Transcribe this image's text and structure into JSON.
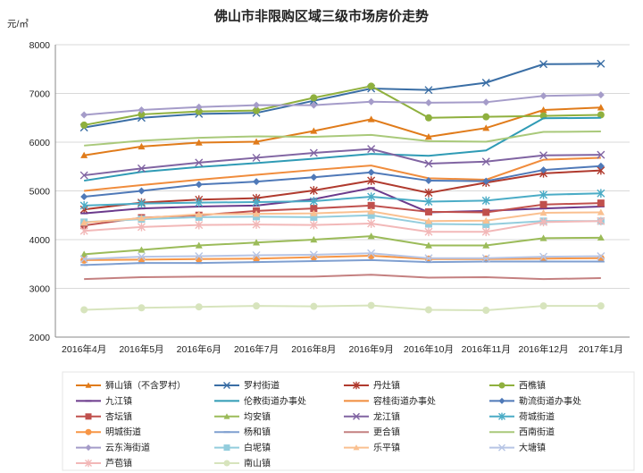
{
  "chart_data": {
    "type": "line",
    "title": "佛山市非限购区域三级市场房价走势",
    "ylabel": "元/㎡",
    "xlabel": "",
    "ylim": [
      2000,
      8000
    ],
    "yticks": [
      "2000",
      "3000",
      "4000",
      "5000",
      "6000",
      "7000",
      "8000"
    ],
    "categories": [
      "2016年4月",
      "2016年5月",
      "2016年6月",
      "2016年7月",
      "2016年8月",
      "2016年9月",
      "2016年10月",
      "2016年11月",
      "2016年12月",
      "2017年1月"
    ],
    "grid": "horizontal",
    "legend_position": "bottom",
    "series": [
      {
        "name": "狮山镇（不含罗村）",
        "color": "#e07b1a",
        "marker": "triangle",
        "values": [
          5730,
          5910,
          5990,
          6010,
          6230,
          6470,
          6110,
          6290,
          6660,
          6710
        ]
      },
      {
        "name": "罗村街道",
        "color": "#3a6ea5",
        "marker": "x",
        "values": [
          6300,
          6500,
          6580,
          6600,
          6850,
          7100,
          7070,
          7220,
          7600,
          7610
        ]
      },
      {
        "name": "丹灶镇",
        "color": "#b03a2e",
        "marker": "star",
        "values": [
          4620,
          4760,
          4820,
          4850,
          5010,
          5210,
          4960,
          5170,
          5360,
          5420
        ]
      },
      {
        "name": "西樵镇",
        "color": "#8fb03e",
        "marker": "circle",
        "values": [
          6350,
          6570,
          6630,
          6650,
          6910,
          7150,
          6500,
          6520,
          6540,
          6560
        ]
      },
      {
        "name": "九江镇",
        "color": "#6b3a8c",
        "marker": "dash",
        "values": [
          4540,
          4640,
          4680,
          4700,
          4830,
          5060,
          4560,
          4590,
          4640,
          4680
        ]
      },
      {
        "name": "伦教街道办事处",
        "color": "#2f9bb5",
        "marker": "none",
        "values": [
          5210,
          5390,
          5490,
          5570,
          5660,
          5760,
          5720,
          5830,
          6490,
          6500
        ]
      },
      {
        "name": "容桂街道办事处",
        "color": "#f08c3c",
        "marker": "none",
        "values": [
          5000,
          5120,
          5230,
          5330,
          5430,
          5520,
          5260,
          5230,
          5640,
          5680
        ]
      },
      {
        "name": "勒流街道办事处",
        "color": "#4f79b8",
        "marker": "diamond",
        "values": [
          4880,
          5000,
          5130,
          5190,
          5280,
          5380,
          5210,
          5200,
          5430,
          5510
        ]
      },
      {
        "name": "杏坛镇",
        "color": "#c0504d",
        "marker": "square",
        "values": [
          4290,
          4450,
          4500,
          4590,
          4640,
          4700,
          4570,
          4560,
          4720,
          4750
        ]
      },
      {
        "name": "均安镇",
        "color": "#9bbb59",
        "marker": "triangle",
        "values": [
          3700,
          3790,
          3880,
          3940,
          4000,
          4070,
          3880,
          3880,
          4030,
          4040
        ]
      },
      {
        "name": "龙江镇",
        "color": "#8064a2",
        "marker": "x",
        "values": [
          5320,
          5460,
          5580,
          5680,
          5780,
          5860,
          5560,
          5600,
          5730,
          5740
        ]
      },
      {
        "name": "荷城街道",
        "color": "#4bacc6",
        "marker": "star",
        "values": [
          4700,
          4740,
          4760,
          4770,
          4790,
          4880,
          4780,
          4800,
          4920,
          4950
        ]
      },
      {
        "name": "明城街道",
        "color": "#f79646",
        "marker": "circle",
        "values": [
          3580,
          3590,
          3600,
          3610,
          3640,
          3670,
          3600,
          3600,
          3610,
          3620
        ]
      },
      {
        "name": "杨和镇",
        "color": "#7f9fd0",
        "marker": "dash",
        "values": [
          3480,
          3520,
          3520,
          3540,
          3560,
          3580,
          3540,
          3550,
          3550,
          3550
        ]
      },
      {
        "name": "更合镇",
        "color": "#c48080",
        "marker": "none",
        "values": [
          3190,
          3230,
          3240,
          3240,
          3240,
          3280,
          3220,
          3230,
          3190,
          3210
        ]
      },
      {
        "name": "西南街道",
        "color": "#a9c97a",
        "marker": "none",
        "values": [
          5930,
          6030,
          6090,
          6120,
          6110,
          6150,
          6020,
          6010,
          6210,
          6220
        ]
      },
      {
        "name": "云东海街道",
        "color": "#a59cc9",
        "marker": "diamond",
        "values": [
          6560,
          6660,
          6720,
          6760,
          6760,
          6830,
          6810,
          6820,
          6950,
          6970
        ]
      },
      {
        "name": "白坭镇",
        "color": "#93cddd",
        "marker": "square",
        "values": [
          4360,
          4420,
          4460,
          4470,
          4460,
          4500,
          4320,
          4310,
          4380,
          4380
        ]
      },
      {
        "name": "乐平镇",
        "color": "#fac090",
        "marker": "triangle",
        "values": [
          4350,
          4440,
          4520,
          4530,
          4540,
          4580,
          4380,
          4390,
          4550,
          4560
        ]
      },
      {
        "name": "大塘镇",
        "color": "#b7c5e5",
        "marker": "x",
        "values": [
          3600,
          3650,
          3660,
          3680,
          3690,
          3720,
          3620,
          3620,
          3650,
          3660
        ]
      },
      {
        "name": "芦苞镇",
        "color": "#f2b8b8",
        "marker": "star",
        "values": [
          4180,
          4260,
          4300,
          4310,
          4300,
          4330,
          4160,
          4160,
          4360,
          4380
        ]
      },
      {
        "name": "南山镇",
        "color": "#d7e4bd",
        "marker": "circle",
        "values": [
          2560,
          2600,
          2620,
          2640,
          2630,
          2650,
          2560,
          2550,
          2640,
          2640
        ]
      }
    ]
  }
}
